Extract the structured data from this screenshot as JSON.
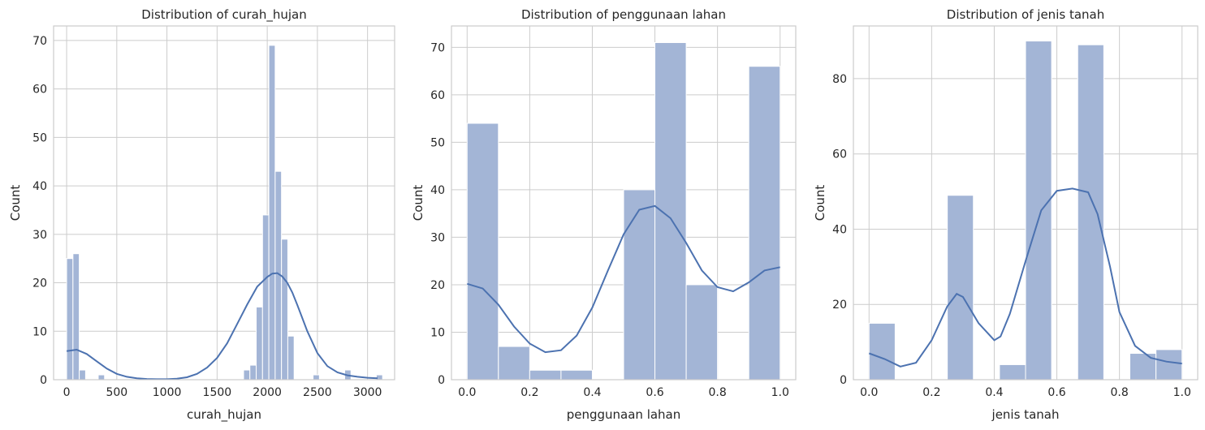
{
  "chart_data": [
    {
      "type": "bar",
      "title": "Distribution of curah_hujan",
      "xlabel": "curah_hujan",
      "ylabel": "Count",
      "xlim": [
        -130,
        3270
      ],
      "ylim": [
        0,
        73
      ],
      "xticks": [
        0,
        500,
        1000,
        1500,
        2000,
        2500,
        3000
      ],
      "yticks": [
        0,
        10,
        20,
        30,
        40,
        50,
        60,
        70
      ],
      "grid": true,
      "bin_edges": [
        0,
        63,
        126,
        189,
        252,
        315,
        378,
        441,
        504,
        567,
        630,
        693,
        756,
        819,
        882,
        945,
        1008,
        1071,
        1134,
        1197,
        1260,
        1323,
        1386,
        1449,
        1512,
        1575,
        1638,
        1701,
        1764,
        1827,
        1890,
        1953,
        2016,
        2079,
        2142,
        2205,
        2268,
        2331,
        2394,
        2457,
        2520,
        2583,
        2646,
        2709,
        2772,
        2835,
        2898,
        2961,
        3024,
        3087,
        3150
      ],
      "counts": [
        25,
        26,
        2,
        0,
        0,
        1,
        0,
        0,
        0,
        0,
        0,
        0,
        0,
        0,
        0,
        0,
        0,
        0,
        0,
        0,
        0,
        0,
        0,
        0,
        0,
        0,
        0,
        0,
        2,
        3,
        15,
        34,
        69,
        43,
        29,
        9,
        0,
        0,
        0,
        1,
        0,
        0,
        0,
        0,
        2,
        0,
        0,
        0,
        0,
        1
      ],
      "kde": {
        "x": [
          0,
          100,
          200,
          300,
          400,
          500,
          600,
          700,
          800,
          900,
          1000,
          1100,
          1200,
          1300,
          1400,
          1500,
          1600,
          1700,
          1800,
          1900,
          2000,
          2050,
          2100,
          2150,
          2200,
          2250,
          2300,
          2400,
          2500,
          2600,
          2700,
          2800,
          2900,
          3000,
          3100
        ],
        "y": [
          5.9,
          6.2,
          5.3,
          3.8,
          2.3,
          1.2,
          0.6,
          0.3,
          0.15,
          0.1,
          0.1,
          0.2,
          0.5,
          1.2,
          2.5,
          4.5,
          7.5,
          11.5,
          15.5,
          19.2,
          21.2,
          21.9,
          22.0,
          21.3,
          20.0,
          18.0,
          15.4,
          10.0,
          5.5,
          2.8,
          1.5,
          0.9,
          0.6,
          0.4,
          0.3
        ]
      }
    },
    {
      "type": "bar",
      "title": "Distribution of penggunaan lahan",
      "xlabel": "penggunaan lahan",
      "ylabel": "Count",
      "xlim": [
        -0.05,
        1.05
      ],
      "ylim": [
        0,
        74.5
      ],
      "xticks": [
        0.0,
        0.2,
        0.4,
        0.6,
        0.8,
        1.0
      ],
      "yticks": [
        0,
        10,
        20,
        30,
        40,
        50,
        60,
        70
      ],
      "grid": true,
      "bin_edges": [
        0,
        0.1,
        0.2,
        0.3,
        0.4,
        0.5,
        0.6,
        0.7,
        0.8,
        0.9,
        1.0
      ],
      "counts": [
        54,
        7,
        2,
        2,
        0,
        40,
        71,
        20,
        0,
        66
      ],
      "kde": {
        "x": [
          0.0,
          0.05,
          0.1,
          0.15,
          0.2,
          0.25,
          0.3,
          0.35,
          0.4,
          0.45,
          0.5,
          0.55,
          0.6,
          0.65,
          0.7,
          0.75,
          0.8,
          0.85,
          0.9,
          0.95,
          1.0
        ],
        "y": [
          20.2,
          19.2,
          15.8,
          11.2,
          7.6,
          5.8,
          6.2,
          9.3,
          15.2,
          23.0,
          30.6,
          35.8,
          36.6,
          34.0,
          28.8,
          23.0,
          19.5,
          18.6,
          20.5,
          23.0,
          23.7
        ]
      }
    },
    {
      "type": "bar",
      "title": "Distribution of jenis tanah",
      "xlabel": "jenis tanah",
      "ylabel": "Count",
      "xlim": [
        -0.05,
        1.05
      ],
      "ylim": [
        0,
        94
      ],
      "xticks": [
        0.0,
        0.2,
        0.4,
        0.6,
        0.8,
        1.0
      ],
      "yticks": [
        0,
        20,
        40,
        60,
        80
      ],
      "grid": true,
      "bin_edges": [
        0,
        0.0833,
        0.1667,
        0.25,
        0.3333,
        0.4167,
        0.5,
        0.5833,
        0.6667,
        0.75,
        0.8333,
        0.9167,
        1.0
      ],
      "counts": [
        15,
        0,
        0,
        49,
        0,
        4,
        90,
        0,
        89,
        0,
        7,
        8
      ],
      "kde": {
        "x": [
          0.0,
          0.05,
          0.1,
          0.15,
          0.2,
          0.25,
          0.28,
          0.3,
          0.35,
          0.4,
          0.42,
          0.45,
          0.5,
          0.55,
          0.6,
          0.65,
          0.7,
          0.73,
          0.77,
          0.8,
          0.85,
          0.9,
          0.95,
          1.0
        ],
        "y": [
          7.0,
          5.5,
          3.5,
          4.5,
          10.5,
          19.5,
          22.8,
          22.0,
          15.0,
          10.5,
          11.5,
          17.5,
          31.5,
          45.0,
          50.2,
          50.8,
          49.8,
          44.0,
          30.0,
          18.0,
          9.0,
          5.8,
          4.8,
          4.3
        ]
      }
    }
  ]
}
